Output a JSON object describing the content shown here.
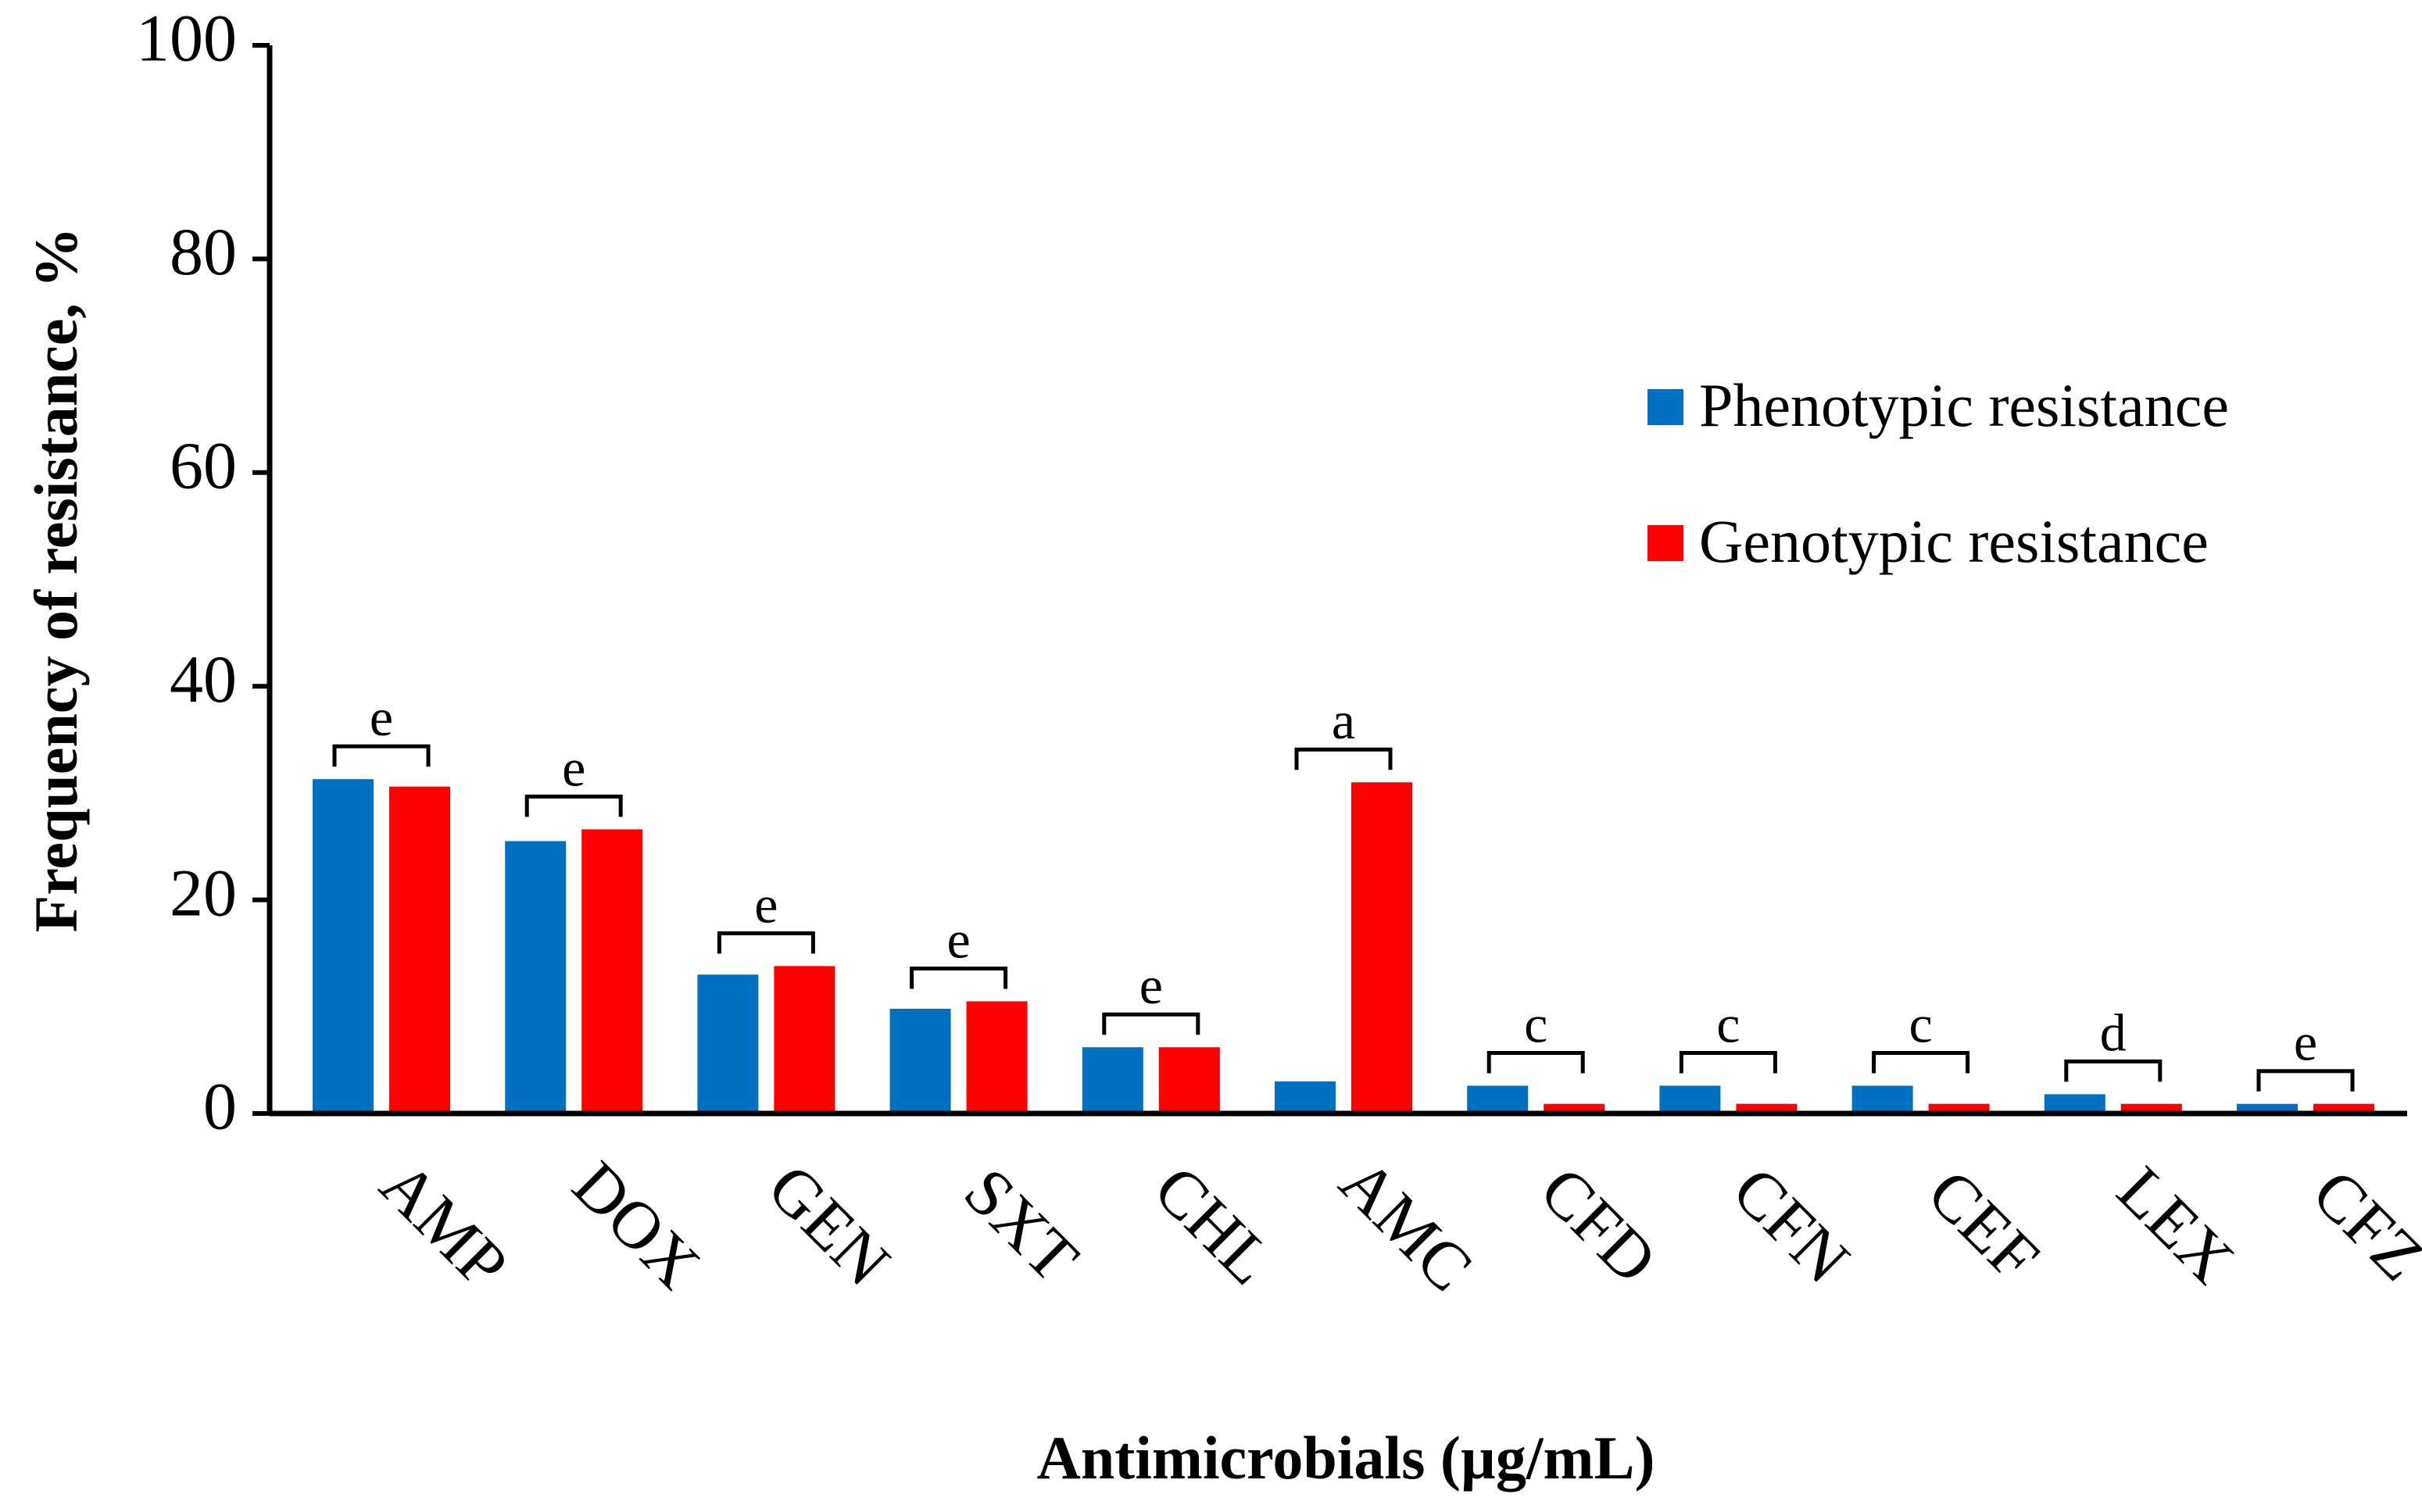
{
  "chart_data": {
    "type": "bar",
    "title": "",
    "xlabel": "Antimicrobials (µg/mL)",
    "ylabel": "Frequency of resistance, %",
    "ylim": [
      0,
      100
    ],
    "yticks": [
      0,
      20,
      40,
      60,
      80,
      100
    ],
    "categories": [
      "AMP",
      "DOX",
      "GEN",
      "SXT",
      "CHL",
      "AMC",
      "CFD",
      "CFN",
      "CEF",
      "LEX",
      "CFZ"
    ],
    "series": [
      {
        "name": "Phenotypic resistance",
        "color": "#0070C0",
        "values": [
          31.3,
          25.5,
          13.0,
          9.8,
          6.2,
          3.0,
          2.6,
          2.6,
          2.6,
          1.8,
          0.9
        ]
      },
      {
        "name": "Genotypic resistance",
        "color": "#FF0000",
        "values": [
          30.6,
          26.6,
          13.8,
          10.5,
          6.2,
          31.0,
          0.9,
          0.9,
          0.9,
          0.9,
          0.9
        ]
      }
    ],
    "annotations": [
      "e",
      "e",
      "e",
      "e",
      "e",
      "a",
      "c",
      "c",
      "c",
      "d",
      "e"
    ],
    "legend_position": "right"
  }
}
